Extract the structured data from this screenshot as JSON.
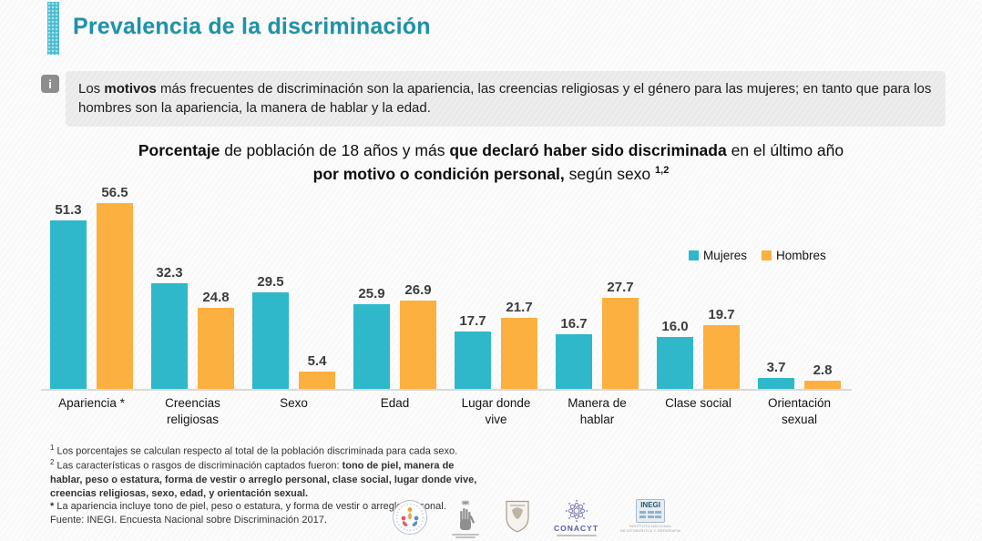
{
  "page": {
    "title": "Prevalencia de la discriminación"
  },
  "info": {
    "icon": "i",
    "parts": {
      "p1": "Los ",
      "p2": "motivos",
      "p3": " más frecuentes de discriminación son la apariencia, las creencias religiosas y el género para las mujeres; en tanto que para los hombres son la apariencia, la manera de hablar y la edad."
    }
  },
  "chart_title": {
    "p1": "Porcentaje",
    "p2": " de población de 18 años y más ",
    "p3": "que declaró haber sido discriminada",
    "p4": " en el último año",
    "p5": "por motivo o condición personal,",
    "p6": " según sexo ",
    "sup": "1,2"
  },
  "chart_data": {
    "type": "bar",
    "title": "Porcentaje de población de 18 años y más que declaró haber sido discriminada en el último año por motivo o condición personal, según sexo",
    "categories": [
      "Apariencia *",
      "Creencias religiosas",
      "Sexo",
      "Edad",
      "Lugar donde vive",
      "Manera de hablar",
      "Clase social",
      "Orientación sexual"
    ],
    "series": [
      {
        "name": "Mujeres",
        "color": "#2eb8c9",
        "values": [
          51.3,
          32.3,
          29.5,
          25.9,
          17.7,
          16.7,
          16.0,
          3.7
        ]
      },
      {
        "name": "Hombres",
        "color": "#fbb040",
        "values": [
          56.5,
          24.8,
          5.4,
          26.9,
          21.7,
          27.7,
          19.7,
          2.8
        ]
      }
    ],
    "xlabel": "",
    "ylabel": "",
    "ylim": [
      0,
      60
    ],
    "grid": false,
    "value_labels": true,
    "legend_position": "top-right"
  },
  "footnotes": {
    "fn1_sup": "1",
    "fn1": " Los porcentajes se calculan respecto al total de la población discriminada para cada sexo.",
    "fn2_sup": "2",
    "fn2a": " Las características o rasgos de discriminación captados fueron: ",
    "fn2b": "tono de piel, manera de hablar, peso o estatura, forma de vestir o arreglo personal, clase social, lugar donde vive, creencias religiosas, sexo, edad, y orientación sexual.",
    "fn3_star": "*",
    "fn3": " La apariencia incluye tono de piel, peso o estatura, y forma de vestir o arreglo personal.",
    "source": "Fuente: INEGI. Encuesta Nacional sobre Discriminación 2017."
  },
  "logos": {
    "conacyt_label": "CONACYT",
    "inegi_label": "INEGI",
    "inegi_caption_1": "INSTITUTO NACIONAL",
    "inegi_caption_2": "DE ESTADÍSTICA Y GEOGRAFÍA"
  },
  "colors": {
    "accent_teal": "#1d93a8",
    "bar_mujeres": "#2eb8c9",
    "bar_hombres": "#fbb040",
    "info_box_bg": "#e9e9e9",
    "axis_line": "#d9d9d9"
  }
}
